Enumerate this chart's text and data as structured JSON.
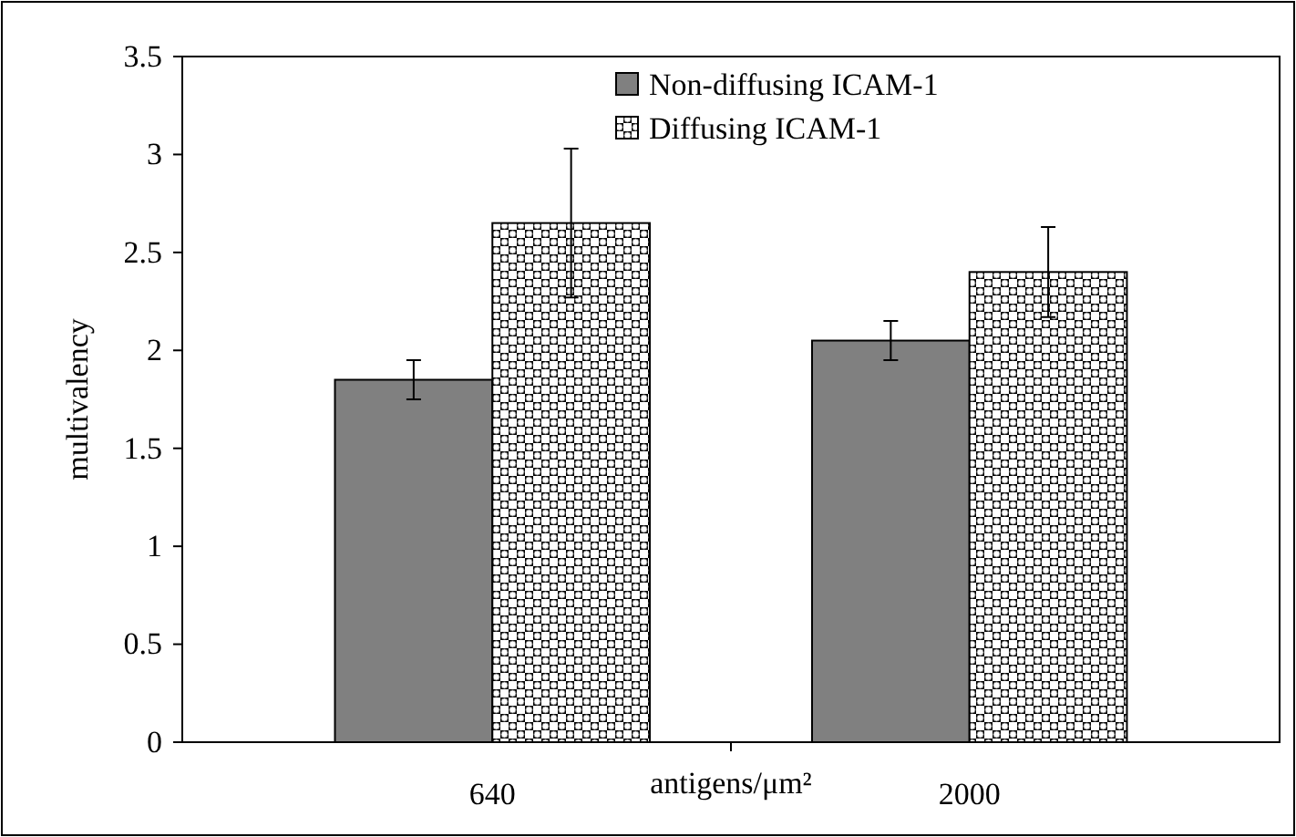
{
  "chart_data": {
    "type": "bar",
    "xlabel": "antigens/μm²",
    "ylabel": "multivalency",
    "categories": [
      "640",
      "2000"
    ],
    "series": [
      {
        "name": "Non-diffusing ICAM-1",
        "color": "#808080",
        "values": [
          1.85,
          2.05
        ],
        "errors": [
          0.1,
          0.1
        ]
      },
      {
        "name": "Diffusing ICAM-1",
        "color": "#000000",
        "values": [
          2.65,
          2.4
        ],
        "errors": [
          0.38,
          0.23
        ]
      }
    ],
    "ylim": [
      0,
      3.5
    ],
    "yticks": [
      0,
      0.5,
      1,
      1.5,
      2,
      2.5,
      3,
      3.5
    ],
    "grid": false,
    "legend": "top right"
  }
}
